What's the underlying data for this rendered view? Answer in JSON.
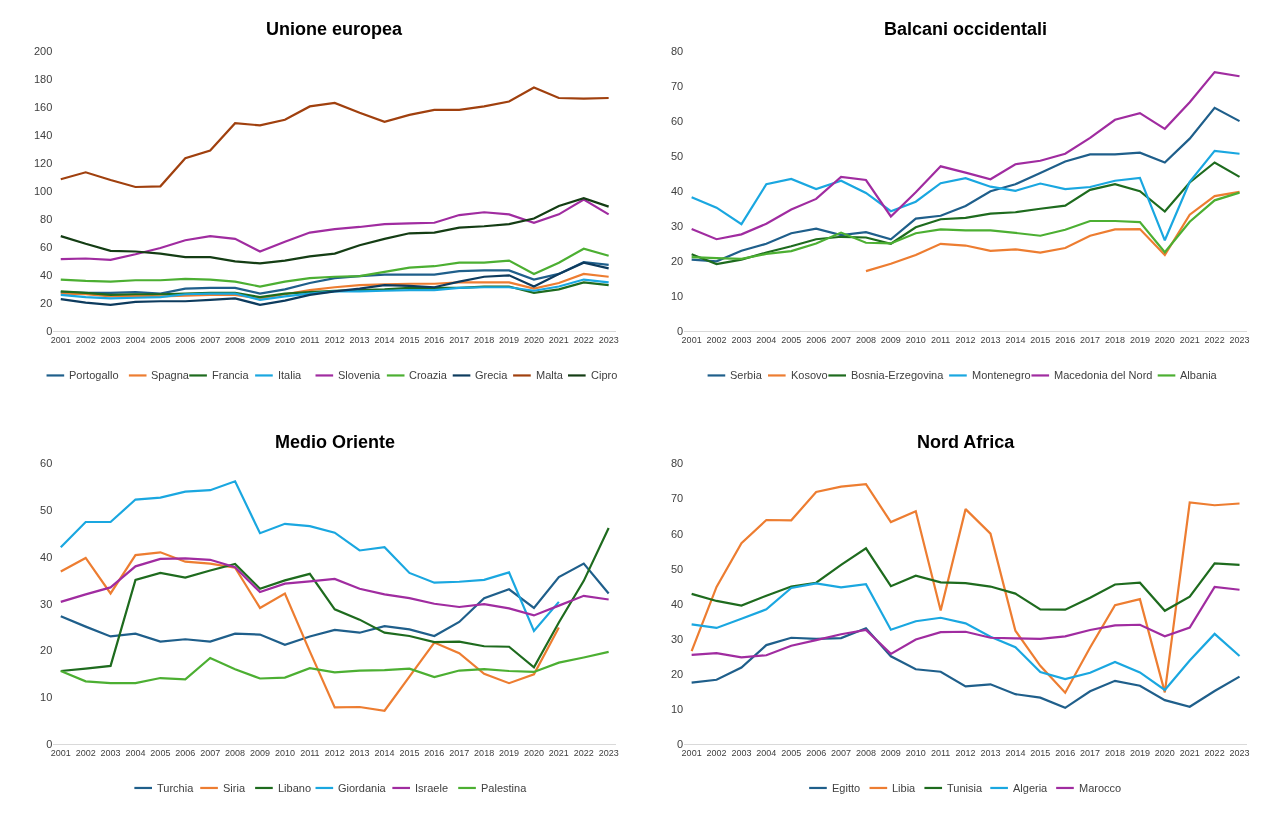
{
  "chart_data": [
    {
      "type": "line",
      "title": "Unione europea",
      "categories": [
        "2001",
        "2002",
        "2003",
        "2004",
        "2005",
        "2006",
        "2007",
        "2008",
        "2009",
        "2010",
        "2011",
        "2012",
        "2013",
        "2014",
        "2015",
        "2016",
        "2017",
        "2018",
        "2019",
        "2020",
        "2021",
        "2022",
        "2023"
      ],
      "ylim": [
        0,
        200
      ],
      "yticks": [
        0,
        20,
        40,
        60,
        80,
        100,
        120,
        140,
        160,
        180,
        200
      ],
      "grid": false,
      "legend": "bottom",
      "marker": "none",
      "line_style": "solid",
      "series": [
        {
          "name": "Portogallo",
          "color": "#1f5f8b",
          "values": [
            28,
            27.5,
            27.5,
            28,
            27,
            30.5,
            31,
            31,
            27,
            30,
            34.5,
            38,
            39.5,
            40.5,
            40.5,
            40.5,
            43,
            43.5,
            43.5,
            37,
            41,
            49.5,
            47.5
          ]
        },
        {
          "name": "Spagna",
          "color": "#ed7d31",
          "values": [
            27,
            26.5,
            25,
            25.5,
            25,
            25.5,
            26,
            26,
            23.5,
            26.5,
            29.5,
            31.5,
            33,
            33.5,
            34,
            34,
            35,
            35,
            35,
            30.5,
            34.5,
            41,
            39
          ]
        },
        {
          "name": "Francia",
          "color": "#1e6b1e",
          "values": [
            28.5,
            27.5,
            26,
            26.5,
            26.5,
            27,
            27.5,
            27.5,
            24.5,
            27,
            28,
            29,
            29.5,
            30,
            31,
            31,
            31,
            32,
            32,
            27.5,
            30,
            35,
            33
          ]
        },
        {
          "name": "Italia",
          "color": "#1aa7e0",
          "values": [
            26,
            24.5,
            23.5,
            24,
            24.5,
            26.5,
            27,
            27,
            22.5,
            25,
            27,
            28.5,
            28.5,
            29,
            29.5,
            29.5,
            31,
            31.5,
            31.5,
            29,
            32,
            37,
            35
          ]
        },
        {
          "name": "Slovenia",
          "color": "#a02ca0",
          "values": [
            51.5,
            52,
            51,
            55,
            59.5,
            65,
            68,
            66,
            57,
            64,
            70.5,
            73,
            74.5,
            76.5,
            77,
            77.5,
            83,
            85,
            83.5,
            77.5,
            83.5,
            94,
            83.5
          ]
        },
        {
          "name": "Croazia",
          "color": "#4caf32",
          "values": [
            37,
            36,
            35.5,
            36.5,
            36.5,
            37.5,
            37,
            35.5,
            32,
            35.5,
            38,
            39,
            39.5,
            42.5,
            45.5,
            46.5,
            49,
            49,
            50.5,
            41,
            49,
            59,
            54
          ]
        },
        {
          "name": "Grecia",
          "color": "#0d3b5e",
          "values": [
            23,
            20.5,
            19,
            21,
            21.5,
            21.5,
            22.5,
            23.5,
            19,
            22,
            26,
            28.5,
            30.5,
            33,
            32.5,
            31.5,
            35.5,
            39,
            40,
            32,
            41,
            49,
            45
          ]
        },
        {
          "name": "Malta",
          "color": "#a0400e",
          "values": [
            108.5,
            113.5,
            108,
            103,
            103.5,
            123.5,
            129,
            148.5,
            147,
            151,
            160.5,
            163,
            156,
            149.5,
            154.5,
            158,
            158,
            160.5,
            164,
            174,
            166.5,
            166,
            166.5
          ]
        },
        {
          "name": "Cipro",
          "color": "#143d14",
          "values": [
            68,
            62.5,
            57.5,
            57,
            55.5,
            53,
            53,
            50,
            48.5,
            50.5,
            53.5,
            55.5,
            61.5,
            66,
            70,
            70.5,
            74,
            75,
            76.5,
            80.5,
            89.5,
            95,
            89
          ]
        }
      ]
    },
    {
      "type": "line",
      "title": "Balcani occidentali",
      "categories": [
        "2001",
        "2002",
        "2003",
        "2004",
        "2005",
        "2006",
        "2007",
        "2008",
        "2009",
        "2010",
        "2011",
        "2012",
        "2013",
        "2014",
        "2015",
        "2016",
        "2017",
        "2018",
        "2019",
        "2020",
        "2021",
        "2022",
        "2023"
      ],
      "ylim": [
        0,
        80
      ],
      "yticks": [
        0,
        10,
        20,
        30,
        40,
        50,
        60,
        70,
        80
      ],
      "grid": false,
      "legend": "bottom",
      "marker": "none",
      "line_style": "solid",
      "series": [
        {
          "name": "Serbia",
          "color": "#1f5f8b",
          "values": [
            20.5,
            20,
            23,
            25,
            28,
            29.3,
            27.5,
            28.3,
            26.3,
            32.2,
            33,
            35.8,
            40,
            42,
            45.2,
            48.5,
            50.5,
            50.5,
            51,
            48.2,
            55,
            63.8,
            60
          ]
        },
        {
          "name": "Kosovo",
          "color": "#ed7d31",
          "values": [
            null,
            null,
            null,
            null,
            null,
            null,
            null,
            17.2,
            19.3,
            21.8,
            25,
            24.5,
            23,
            23.4,
            22.5,
            23.8,
            27.3,
            29.1,
            29.2,
            21.8,
            33.3,
            38.6,
            39.8
          ]
        },
        {
          "name": "Bosnia-Erzegovina",
          "color": "#1e6b1e",
          "values": [
            22,
            19.2,
            20.5,
            22.5,
            24.3,
            26.3,
            27,
            26.8,
            25,
            29.7,
            32,
            32.4,
            33.6,
            34,
            35,
            35.9,
            40.4,
            42,
            40,
            34.2,
            42.5,
            48.2,
            44.1
          ]
        },
        {
          "name": "Montenegro",
          "color": "#1aa7e0",
          "values": [
            38.3,
            35.3,
            30.6,
            42,
            43.5,
            40.6,
            43,
            39.5,
            34.3,
            37,
            42.3,
            43.7,
            41.3,
            40.1,
            42.2,
            40.6,
            41.2,
            43,
            43.8,
            26,
            42.7,
            51.5,
            50.7
          ]
        },
        {
          "name": "Macedonia del Nord",
          "color": "#a02ca0",
          "values": [
            29.2,
            26.3,
            27.7,
            30.7,
            34.8,
            37.8,
            44.1,
            43.2,
            32.8,
            39.7,
            47.1,
            45.3,
            43.4,
            47.7,
            48.7,
            50.7,
            55.2,
            60.4,
            62.3,
            57.8,
            65.4,
            74,
            72.8
          ]
        },
        {
          "name": "Albania",
          "color": "#4caf32",
          "values": [
            21.2,
            20.9,
            20.7,
            22.1,
            22.9,
            25.1,
            28.2,
            25.3,
            25.1,
            28,
            29.1,
            28.8,
            28.8,
            28.1,
            27.3,
            29,
            31.5,
            31.5,
            31.2,
            22.6,
            31.3,
            37.4,
            39.6
          ]
        }
      ]
    },
    {
      "type": "line",
      "title": "Medio Oriente",
      "categories": [
        "2001",
        "2002",
        "2003",
        "2004",
        "2005",
        "2006",
        "2007",
        "2008",
        "2009",
        "2010",
        "2011",
        "2012",
        "2013",
        "2014",
        "2015",
        "2016",
        "2017",
        "2018",
        "2019",
        "2020",
        "2021",
        "2022",
        "2023"
      ],
      "ylim": [
        0,
        60
      ],
      "yticks": [
        0,
        10,
        20,
        30,
        40,
        50,
        60
      ],
      "grid": false,
      "legend": "bottom",
      "marker": "none",
      "line_style": "solid",
      "series": [
        {
          "name": "Turchia",
          "color": "#1f5f8b",
          "values": [
            27.3,
            25.1,
            23,
            23.6,
            21.9,
            22.4,
            21.9,
            23.6,
            23.4,
            21.2,
            23,
            24.4,
            23.8,
            25.2,
            24.5,
            23.1,
            26.1,
            31.2,
            33.1,
            29.1,
            35.7,
            38.6,
            32.2
          ]
        },
        {
          "name": "Siria",
          "color": "#ed7d31",
          "values": [
            36.9,
            39.8,
            32.2,
            40.4,
            41,
            39,
            38.6,
            37.7,
            29.1,
            32.2,
            19.8,
            7.8,
            7.9,
            7.1,
            14.4,
            21.7,
            19.4,
            15,
            13,
            14.9,
            24.9,
            null,
            null
          ]
        },
        {
          "name": "Libano",
          "color": "#1e6b1e",
          "values": [
            15.6,
            16.1,
            16.7,
            35.1,
            36.6,
            35.6,
            37.1,
            38.5,
            33.2,
            35,
            36.4,
            28.8,
            26.6,
            23.8,
            23.1,
            21.8,
            21.9,
            20.9,
            20.8,
            16.4,
            26,
            34.9,
            46.2
          ]
        },
        {
          "name": "Giordania",
          "color": "#1aa7e0",
          "values": [
            42.1,
            47.5,
            47.5,
            52.3,
            52.7,
            54,
            54.3,
            56.2,
            45.1,
            47.1,
            46.6,
            45.2,
            41.4,
            42.1,
            36.6,
            34.5,
            34.7,
            35.1,
            36.7,
            24.2,
            30.4,
            null,
            null
          ]
        },
        {
          "name": "Israele",
          "color": "#a02ca0",
          "values": [
            30.4,
            32,
            33.5,
            38,
            39.6,
            39.7,
            39.4,
            37.8,
            32.5,
            34.3,
            34.8,
            35.3,
            33.2,
            32,
            31.2,
            30,
            29.3,
            29.9,
            29,
            27.5,
            29.6,
            31.7,
            30.9
          ]
        },
        {
          "name": "Palestina",
          "color": "#4caf32",
          "values": [
            15.6,
            13.4,
            13,
            13,
            14.1,
            13.8,
            18.4,
            16,
            14,
            14.2,
            16.2,
            15.3,
            15.7,
            15.8,
            16.1,
            14.3,
            15.7,
            16,
            15.6,
            15.4,
            17.4,
            18.5,
            19.7
          ]
        }
      ]
    },
    {
      "type": "line",
      "title": "Nord Africa",
      "categories": [
        "2001",
        "2002",
        "2003",
        "2004",
        "2005",
        "2006",
        "2007",
        "2008",
        "2009",
        "2010",
        "2011",
        "2012",
        "2013",
        "2014",
        "2015",
        "2016",
        "2017",
        "2018",
        "2019",
        "2020",
        "2021",
        "2022",
        "2023"
      ],
      "ylim": [
        0,
        80
      ],
      "yticks": [
        0,
        10,
        20,
        30,
        40,
        50,
        60,
        70,
        80
      ],
      "grid": false,
      "legend": "bottom",
      "marker": "none",
      "line_style": "solid",
      "series": [
        {
          "name": "Egitto",
          "color": "#1f5f8b",
          "values": [
            17.5,
            18.3,
            21.8,
            28.2,
            30.3,
            30,
            30.2,
            33,
            25,
            21.3,
            20.6,
            16.4,
            17,
            14.2,
            13.2,
            10.3,
            15,
            18,
            16.6,
            12.5,
            10.6,
            15.1,
            19.2
          ]
        },
        {
          "name": "Libia",
          "color": "#ed7d31",
          "values": [
            26.5,
            44.8,
            57.3,
            63.9,
            63.8,
            71.9,
            73.4,
            74.1,
            63.3,
            66.4,
            38.1,
            67,
            60,
            32.3,
            22.3,
            14.6,
            27.5,
            39.6,
            41.3,
            14.7,
            68.9,
            68.1,
            68.6
          ]
        },
        {
          "name": "Tunisia",
          "color": "#1e6b1e",
          "values": [
            42.8,
            40.8,
            39.5,
            42.3,
            44.9,
            46,
            51.1,
            55.8,
            45,
            48,
            46.1,
            45.9,
            44.9,
            42.9,
            38.4,
            38.3,
            41.7,
            45.5,
            46,
            38,
            42,
            51.5,
            51.1
          ]
        },
        {
          "name": "Algeria",
          "color": "#1aa7e0",
          "values": [
            34.1,
            33.1,
            35.7,
            38.4,
            44.5,
            45.8,
            44.7,
            45.6,
            32.6,
            35,
            36,
            34.4,
            30.6,
            27.6,
            20.5,
            18.5,
            20.3,
            23.4,
            20.4,
            15.4,
            23.8,
            31.4,
            25.1
          ]
        },
        {
          "name": "Marocco",
          "color": "#a02ca0",
          "values": [
            25.4,
            25.9,
            24.7,
            25.3,
            28,
            29.6,
            31.3,
            32.5,
            25.7,
            29.8,
            31.9,
            32,
            30.3,
            30.1,
            30,
            30.7,
            32.5,
            33.8,
            34,
            30.7,
            33.2,
            44.8,
            44
          ]
        }
      ]
    }
  ]
}
